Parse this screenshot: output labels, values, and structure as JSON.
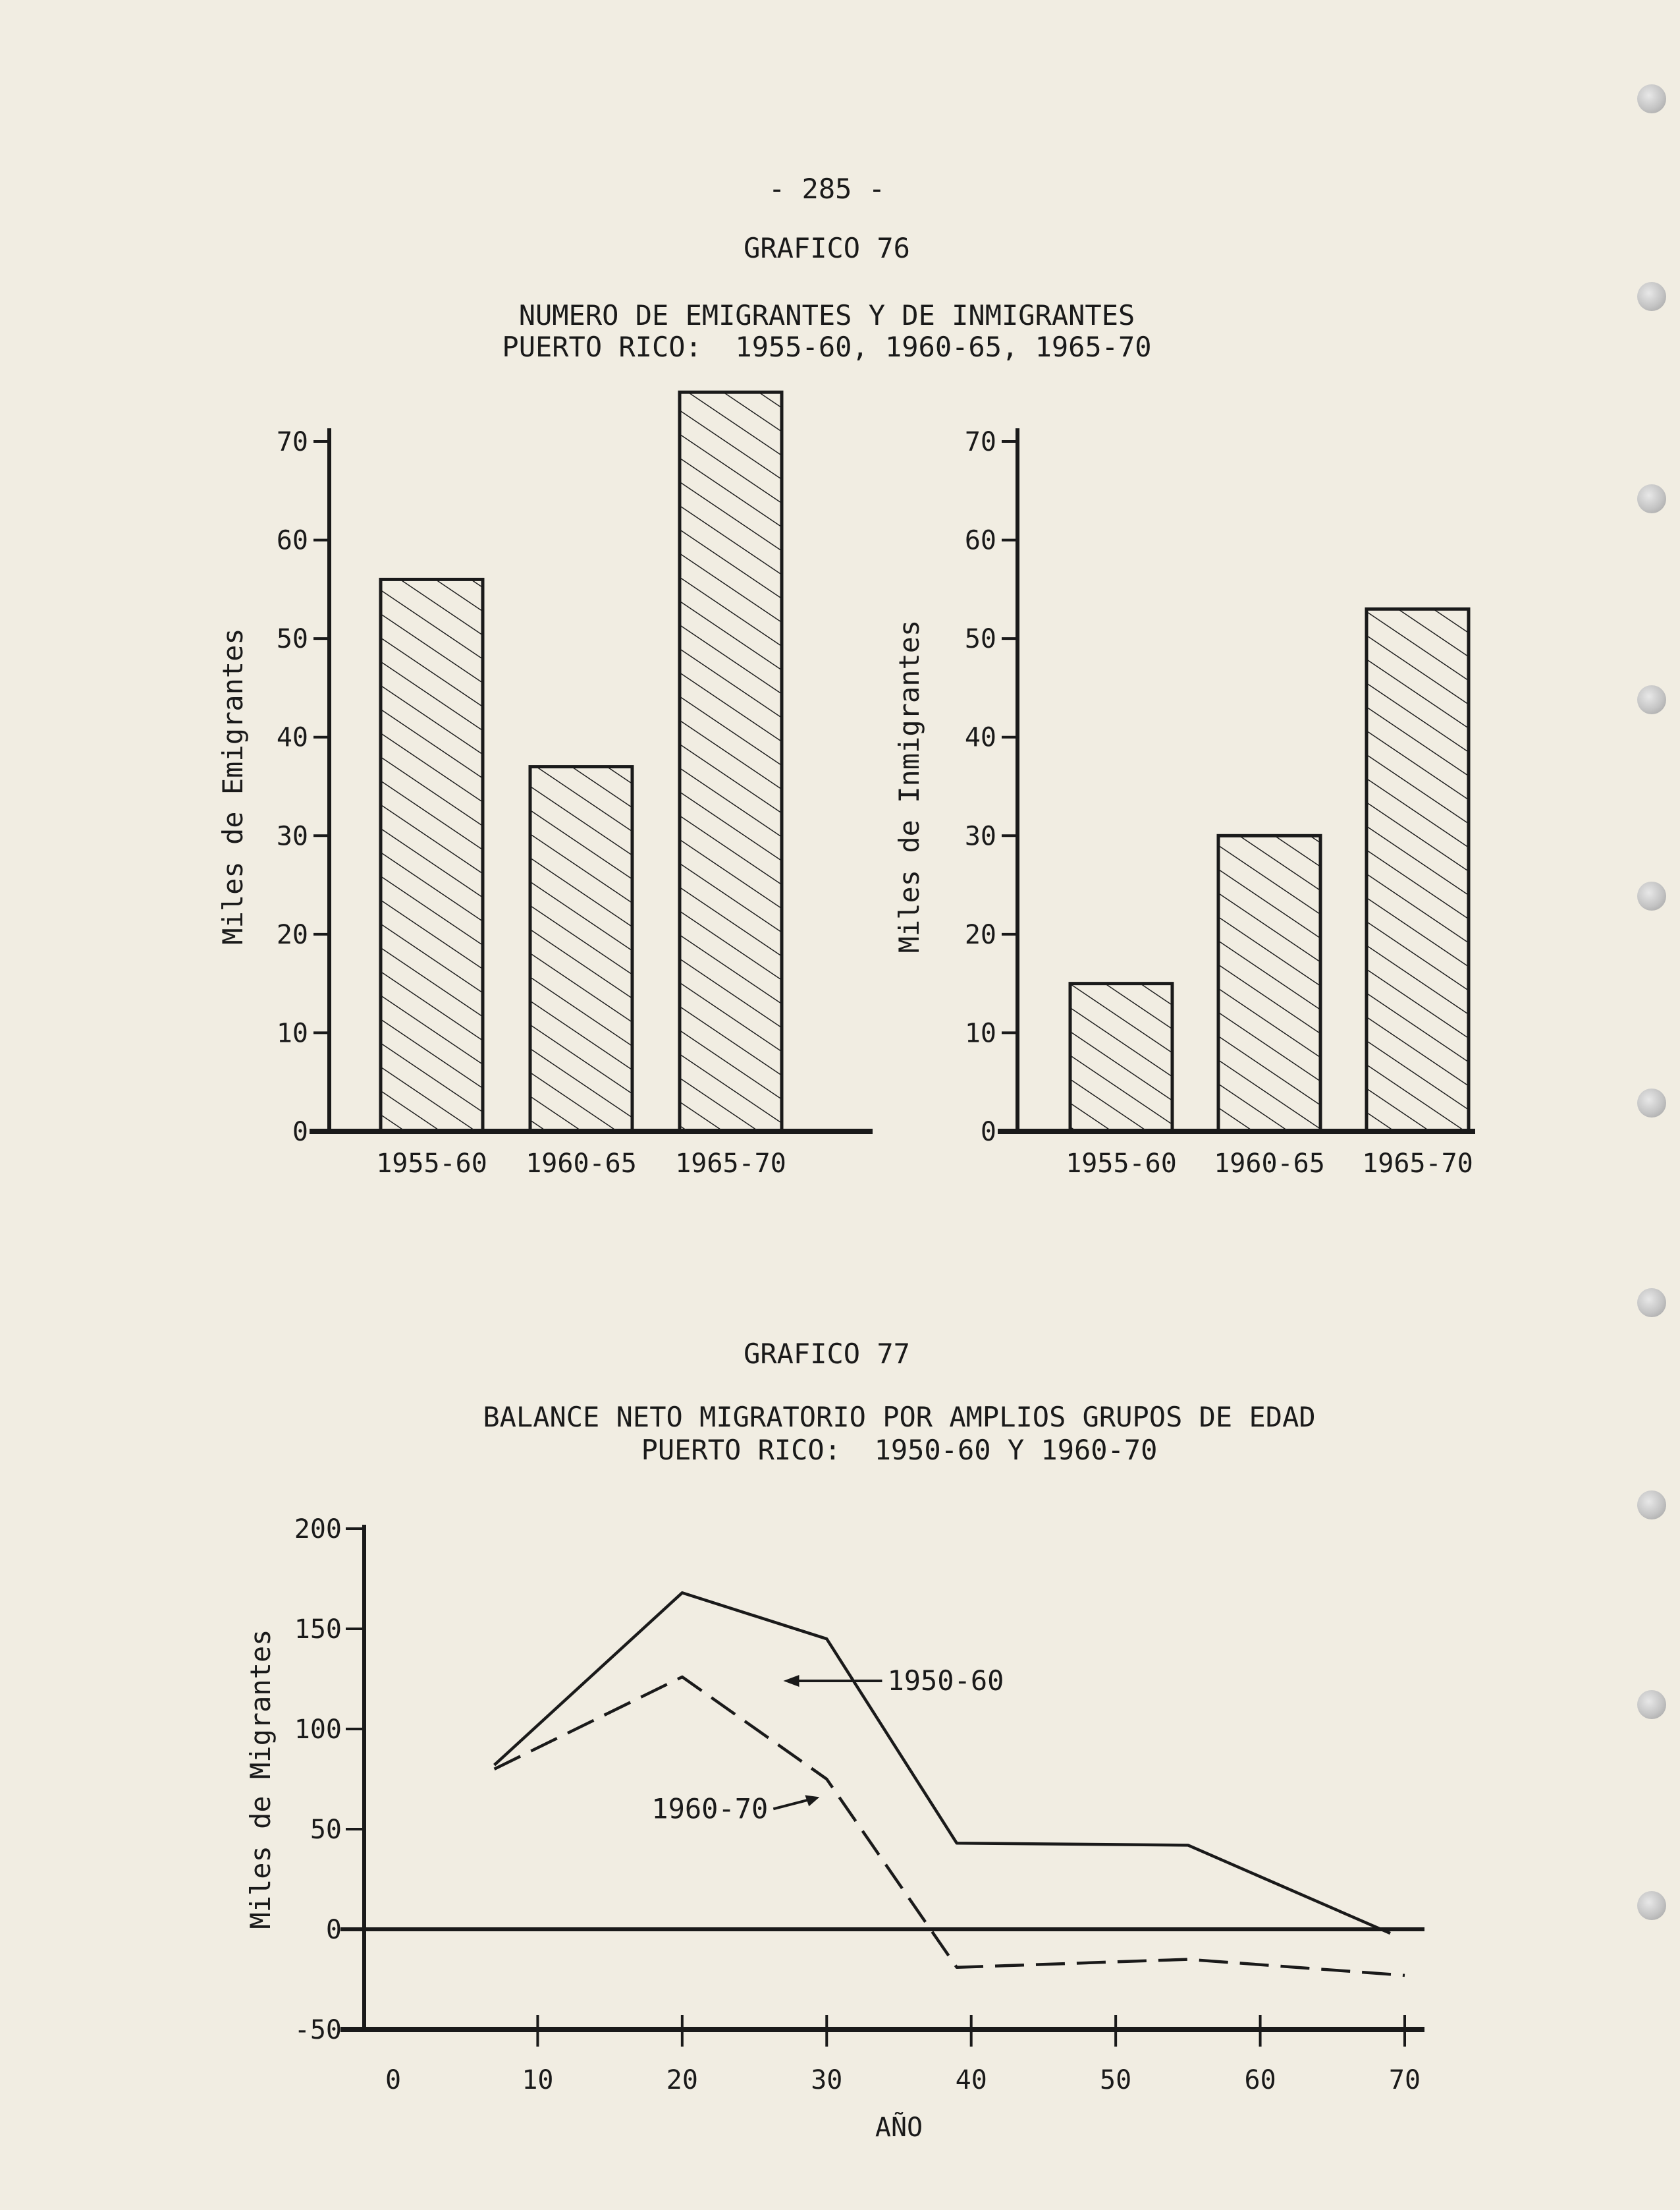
{
  "page_number": "- 285 -",
  "chart_data": [
    {
      "id": "grafico-76-emigrantes",
      "type": "bar",
      "figure_label": "GRAFICO 76",
      "title": "NUMERO DE EMIGRANTES Y DE INMIGRANTES",
      "subtitle": "PUERTO RICO:  1955-60, 1960-65, 1965-70",
      "categories": [
        "1955-60",
        "1960-65",
        "1965-70"
      ],
      "values": [
        56,
        37,
        75
      ],
      "xlabel": "",
      "ylabel": "Miles de Emigrantes",
      "ylim": [
        0,
        70
      ],
      "yticks": [
        0,
        10,
        20,
        30,
        40,
        50,
        60,
        70
      ],
      "pattern": "diagonal-hatch",
      "grid": false
    },
    {
      "id": "grafico-76-inmigrantes",
      "type": "bar",
      "categories": [
        "1955-60",
        "1960-65",
        "1965-70"
      ],
      "values": [
        15,
        30,
        53
      ],
      "xlabel": "",
      "ylabel": "Miles de Inmigrantes",
      "ylim": [
        0,
        70
      ],
      "yticks": [
        10,
        20,
        30,
        40,
        50,
        60,
        70
      ],
      "zero_label": "0",
      "pattern": "diagonal-hatch",
      "grid": false
    },
    {
      "id": "grafico-77",
      "type": "line",
      "figure_label": "GRAFICO 77",
      "title": "BALANCE NETO MIGRATORIO POR AMPLIOS GRUPOS DE EDAD",
      "subtitle": "PUERTO RICO:  1950-60 Y 1960-70",
      "xlabel": "AÑO",
      "ylabel": "Miles de Migrantes",
      "xlim": [
        0,
        70
      ],
      "ylim": [
        -50,
        200
      ],
      "xticks": [
        0,
        10,
        20,
        30,
        40,
        50,
        60,
        70
      ],
      "yticks": [
        -50,
        0,
        50,
        100,
        150,
        200
      ],
      "ytick_labels": [
        "-50",
        "0",
        "50",
        "100",
        "150",
        "200"
      ],
      "grid": false,
      "series": [
        {
          "name": "1950-60",
          "style": "solid",
          "x": [
            7,
            20,
            30,
            39,
            55,
            69
          ],
          "y": [
            82,
            168,
            145,
            43,
            42,
            -2
          ]
        },
        {
          "name": "1960-70",
          "style": "dashed",
          "x": [
            7,
            20,
            30,
            39,
            55,
            70
          ],
          "y": [
            80,
            126,
            75,
            -19,
            -15,
            -23
          ]
        }
      ]
    }
  ]
}
